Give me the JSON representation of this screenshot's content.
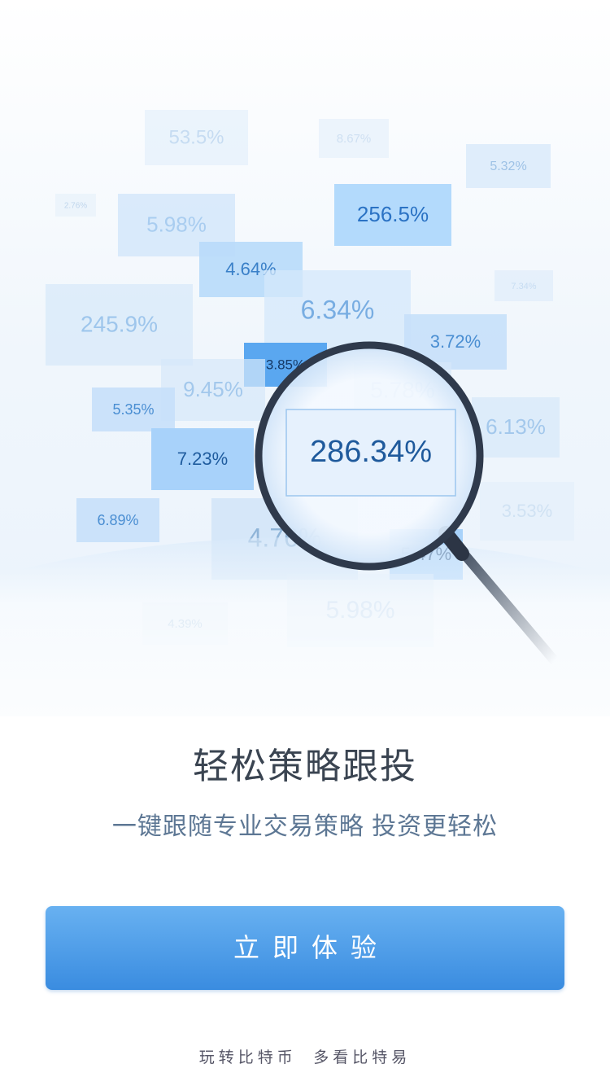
{
  "tiles": [
    "53.5%",
    "8.67%",
    "5.32%",
    "2.76%",
    "5.98%",
    "256.5%",
    "4.64%",
    "7.34%",
    "245.9%",
    "6.34%",
    "3.72%",
    "3.85%",
    "9.45%",
    "5.78%",
    "5.35%",
    "6.13%",
    "7.23%",
    "6.89%",
    "4.76%",
    "3.53%",
    "5.47%",
    "5.98%",
    "4.39%"
  ],
  "lens": "286.34%",
  "title": "轻松策略跟投",
  "subtitle": "一键跟随专业交易策略 投资更轻松",
  "button": "立即体验",
  "footer": "玩转比特币  多看比特易"
}
